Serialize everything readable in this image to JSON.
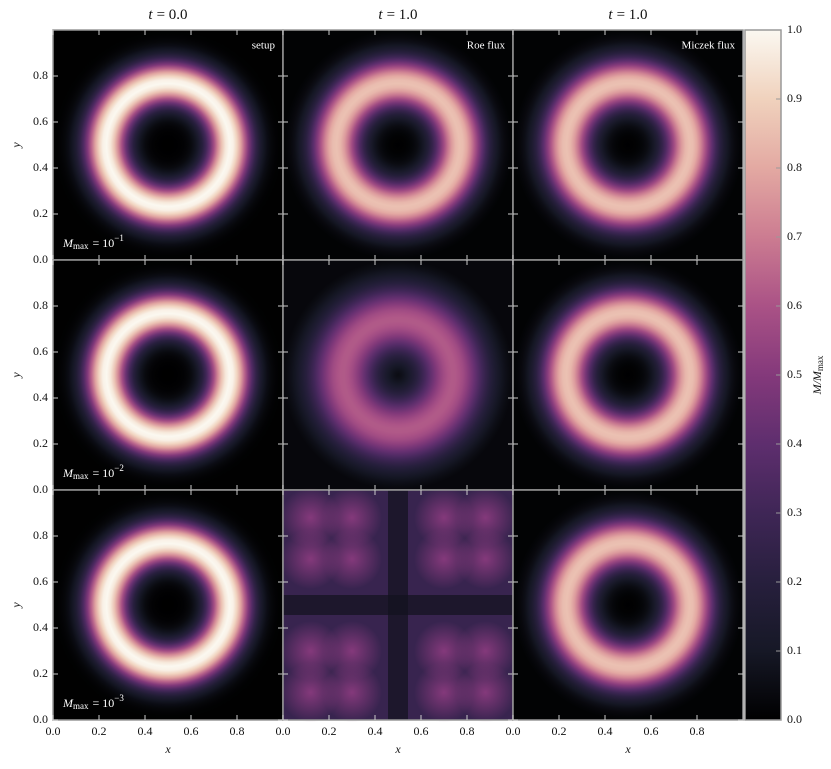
{
  "chart_data": {
    "type": "heatmap",
    "column_titles": [
      {
        "symbol": "t",
        "text": "= 0.0"
      },
      {
        "symbol": "t",
        "text": "= 1.0"
      },
      {
        "symbol": "t",
        "text": "= 1.0"
      }
    ],
    "panel_labels": [
      "setup",
      "Roe flux",
      "Miczek flux"
    ],
    "row_labels": [
      {
        "symbol": "M",
        "subscript": "max",
        "text": "= 10",
        "exponent": "−1"
      },
      {
        "symbol": "M",
        "subscript": "max",
        "text": "= 10",
        "exponent": "−2"
      },
      {
        "symbol": "M",
        "subscript": "max",
        "text": "= 10",
        "exponent": "−3"
      }
    ],
    "xlabel": "x",
    "ylabel": "y",
    "xlim": [
      0,
      1
    ],
    "ylim": [
      0,
      1
    ],
    "xticks": [
      {
        "value": 0,
        "label": "0.0"
      },
      0.2,
      0.4,
      0.6,
      0.8
    ],
    "yticks": [
      {
        "value": 0,
        "label": "0.0"
      },
      0.2,
      0.4,
      0.6,
      0.8
    ],
    "colormap": [
      "#000000",
      "#161826",
      "#271f3d",
      "#3f2656",
      "#5e2e6e",
      "#84397b",
      "#aa5286",
      "#cc7c91",
      "#e3a9a2",
      "#f0d2bd",
      "#fbf8f1"
    ],
    "colorbar": {
      "label": {
        "symbol": "M/M",
        "subscript": "max"
      },
      "lim": [
        0,
        1
      ],
      "ticks": [
        {
          "value": 0,
          "label": "0.0"
        },
        0.1,
        0.2,
        0.3,
        0.4,
        0.5,
        0.6,
        0.7,
        0.8,
        0.9,
        {
          "value": 1,
          "label": "1.0"
        }
      ]
    }
  }
}
